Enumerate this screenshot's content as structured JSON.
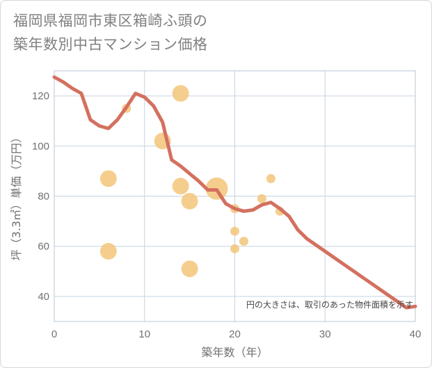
{
  "title_line1": "福岡県福岡市東区箱崎ふ頭の",
  "title_line2": "築年数別中古マンション価格",
  "chart_data": {
    "type": "scatter",
    "xlabel": "築年数（年）",
    "ylabel": "坪（3.3㎡）単価（万円）",
    "xlim": [
      0,
      40
    ],
    "ylim": [
      30,
      130
    ],
    "x_ticks": [
      0,
      10,
      20,
      30,
      40
    ],
    "y_ticks": [
      40,
      60,
      80,
      100,
      120
    ],
    "grid": true,
    "annotation": "円の大きさは、取引のあった物件面積を示す",
    "colors": {
      "bubble": "#f3c57a",
      "line": "#d4705f",
      "grid": "#c5d3e0"
    },
    "bubbles": [
      {
        "x": 6,
        "y": 87,
        "size": 2
      },
      {
        "x": 6,
        "y": 58,
        "size": 2
      },
      {
        "x": 8,
        "y": 115,
        "size": 1
      },
      {
        "x": 12,
        "y": 102,
        "size": 2
      },
      {
        "x": 14,
        "y": 121,
        "size": 2
      },
      {
        "x": 14,
        "y": 84,
        "size": 2
      },
      {
        "x": 15,
        "y": 78,
        "size": 2
      },
      {
        "x": 15,
        "y": 51,
        "size": 2
      },
      {
        "x": 18,
        "y": 83,
        "size": 3
      },
      {
        "x": 20,
        "y": 75,
        "size": 1
      },
      {
        "x": 20,
        "y": 66,
        "size": 1
      },
      {
        "x": 20,
        "y": 59,
        "size": 1
      },
      {
        "x": 21,
        "y": 62,
        "size": 1
      },
      {
        "x": 23,
        "y": 79,
        "size": 1
      },
      {
        "x": 24,
        "y": 87,
        "size": 1
      },
      {
        "x": 25,
        "y": 74,
        "size": 1
      }
    ],
    "trend_line": {
      "x": [
        0,
        1,
        2,
        3,
        4,
        5,
        6,
        7,
        8,
        9,
        10,
        11,
        12,
        13,
        14,
        15,
        16,
        17,
        18,
        19,
        20,
        21,
        22,
        23,
        24,
        25,
        26,
        27,
        28,
        29,
        30,
        31,
        32,
        33,
        34,
        35,
        36,
        37,
        38,
        39,
        40
      ],
      "y": [
        127.5,
        125.5,
        123,
        121,
        110.5,
        108,
        107,
        110.5,
        115.5,
        121,
        119.5,
        116,
        109.5,
        94.5,
        92,
        89,
        86,
        82.5,
        82.5,
        77,
        75,
        74,
        74.5,
        76.5,
        77.5,
        75,
        72,
        66.5,
        63,
        60.5,
        58,
        55.5,
        53,
        50.5,
        48,
        45.5,
        43,
        40.5,
        38,
        35.5,
        36
      ]
    }
  }
}
